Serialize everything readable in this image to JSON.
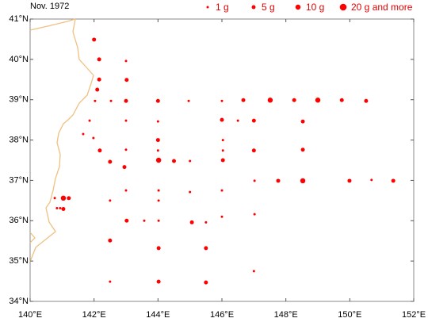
{
  "chart_data": {
    "type": "scatter",
    "title": "Nov. 1972",
    "color": "#ff0000",
    "legend": [
      {
        "value": 1,
        "label": "1 g"
      },
      {
        "value": 5,
        "label": "5 g"
      },
      {
        "value": 10,
        "label": "10 g"
      },
      {
        "value": 20,
        "label": "20 g and more"
      }
    ],
    "xlim": [
      140,
      152
    ],
    "ylim": [
      34,
      41
    ],
    "xticks": [
      {
        "value": 140,
        "label": "140°E"
      },
      {
        "value": 142,
        "label": "142°E"
      },
      {
        "value": 144,
        "label": "144°E"
      },
      {
        "value": 146,
        "label": "146°E"
      },
      {
        "value": 148,
        "label": "148°E"
      },
      {
        "value": 150,
        "label": "150°E"
      },
      {
        "value": 152,
        "label": "152°E"
      }
    ],
    "yticks": [
      {
        "value": 34,
        "label": "34°N"
      },
      {
        "value": 35,
        "label": "35°N"
      },
      {
        "value": 36,
        "label": "36°N"
      },
      {
        "value": 37,
        "label": "37°N"
      },
      {
        "value": 38,
        "label": "38°N"
      },
      {
        "value": 39,
        "label": "39°N"
      },
      {
        "value": 40,
        "label": "40°N"
      },
      {
        "value": 41,
        "label": "41°N"
      }
    ],
    "x": [
      142.0,
      142.16,
      143.0,
      142.16,
      143.02,
      142.1,
      142.03,
      142.53,
      143.0,
      144.0,
      144.96,
      146.0,
      146.67,
      147.51,
      148.26,
      149.0,
      149.75,
      150.51,
      141.86,
      143.0,
      144.0,
      146.0,
      146.5,
      147.0,
      148.53,
      141.66,
      141.98,
      144.0,
      146.03,
      142.18,
      143.0,
      144.0,
      146.03,
      147.0,
      148.53,
      142.5,
      144.02,
      144.5,
      145.0,
      146.03,
      142.95,
      147.02,
      147.76,
      148.53,
      149.99,
      150.68,
      151.36,
      143.0,
      144.02,
      145.0,
      146.0,
      142.5,
      144.02,
      140.77,
      141.04,
      141.21,
      140.84,
      140.94,
      141.04,
      147.02,
      146.0,
      143.02,
      143.57,
      144.02,
      145.06,
      145.5,
      142.5,
      144.02,
      145.5,
      147.0,
      142.5,
      144.02,
      145.5
    ],
    "y": [
      40.49,
      40.0,
      39.96,
      39.5,
      39.49,
      39.25,
      38.97,
      38.97,
      38.97,
      38.97,
      38.97,
      38.97,
      38.99,
      38.99,
      38.99,
      38.99,
      38.99,
      38.97,
      38.48,
      38.48,
      38.46,
      38.5,
      38.48,
      38.48,
      38.46,
      38.15,
      38.05,
      38.0,
      38.0,
      37.74,
      37.76,
      37.74,
      37.74,
      37.74,
      37.76,
      37.46,
      37.5,
      37.48,
      37.48,
      37.5,
      37.33,
      36.99,
      36.99,
      36.99,
      36.99,
      37.01,
      36.99,
      36.75,
      36.75,
      36.71,
      36.75,
      36.5,
      36.5,
      36.56,
      36.56,
      36.56,
      36.31,
      36.31,
      36.29,
      36.16,
      36.1,
      36.0,
      36.0,
      36.0,
      35.96,
      35.96,
      35.51,
      35.32,
      35.32,
      34.75,
      34.49,
      34.49,
      34.47
    ],
    "values": [
      5,
      5,
      1,
      5,
      5,
      5,
      1,
      1,
      5,
      5,
      1,
      1,
      5,
      10,
      5,
      10,
      5,
      5,
      1,
      1,
      1,
      5,
      1,
      5,
      5,
      1,
      1,
      5,
      1,
      5,
      1,
      1,
      1,
      5,
      5,
      5,
      10,
      5,
      1,
      5,
      5,
      1,
      5,
      10,
      5,
      1,
      5,
      1,
      1,
      1,
      1,
      1,
      1,
      1,
      10,
      5,
      1,
      1,
      5,
      1,
      1,
      5,
      1,
      1,
      5,
      1,
      5,
      5,
      5,
      1,
      1,
      5,
      5
    ]
  }
}
